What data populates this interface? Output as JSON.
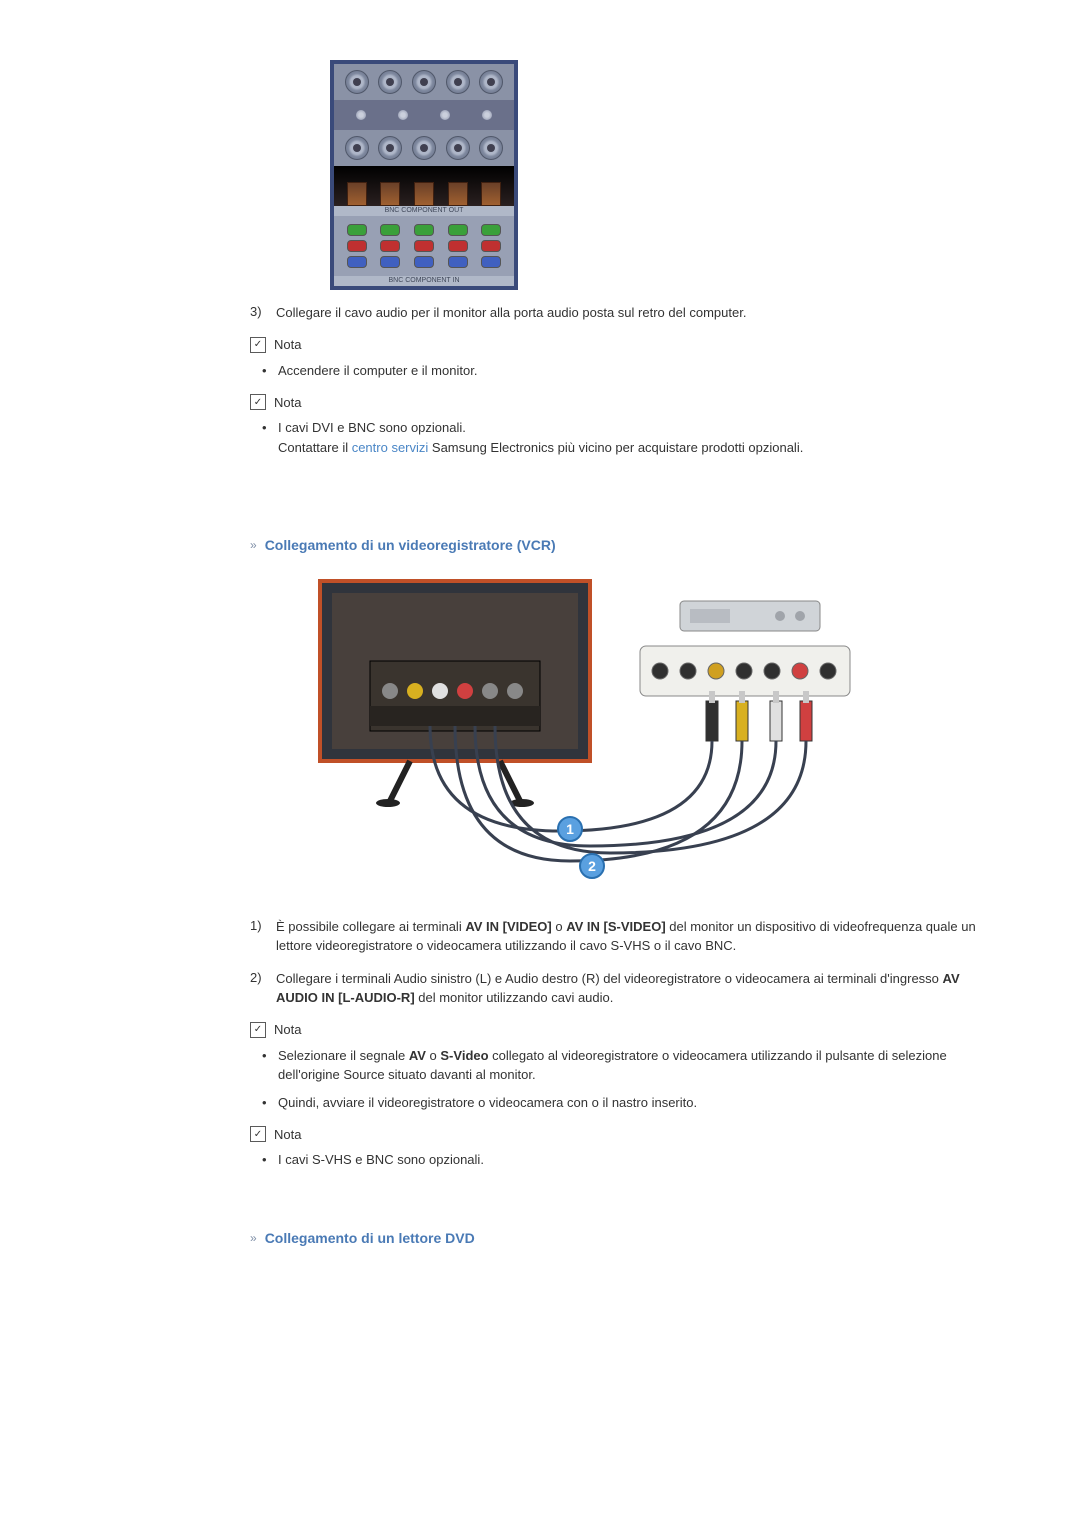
{
  "colors": {
    "link": "#4a86c6",
    "heading": "#4a7ab5",
    "text": "#333333",
    "panel_border": "#3a4a7a",
    "panel_bg": "#8a92a6"
  },
  "port_panel": {
    "label_strip": "BNC COMPONENT OUT",
    "grid_row_colors": [
      [
        "#3aa03a",
        "#3aa03a",
        "#3aa03a",
        "#3aa03a",
        "#3aa03a"
      ],
      [
        "#c03030",
        "#c03030",
        "#c03030",
        "#c03030",
        "#c03030"
      ],
      [
        "#4060c0",
        "#4060c0",
        "#4060c0",
        "#4060c0",
        "#4060c0"
      ]
    ],
    "bottom_label": "BNC COMPONENT IN"
  },
  "list1": {
    "num": "3)",
    "text": "Collegare il cavo audio per il monitor alla porta audio posta sul retro del computer."
  },
  "nota_label": "Nota",
  "bullet1": "Accendere il computer e il monitor.",
  "bullet2_a": "I cavi DVI e BNC sono opzionali.",
  "bullet2_b_pre": "Contattare il ",
  "bullet2_b_link": "centro servizi",
  "bullet2_b_post": " Samsung Electronics più vicino per acquistare prodotti opzionali.",
  "section_vcr": {
    "title": "Collegamento di un videoregistratore (VCR)"
  },
  "vcr_diagram": {
    "callouts": [
      "1",
      "2"
    ],
    "callout_bg": "#5aa0e0",
    "callout_border": "#2a70b0",
    "plug_colors": [
      "#303030",
      "#d8b020",
      "#e0e0e0",
      "#d04040"
    ],
    "monitor_bg": "#c05028",
    "vcr_bg": "#d0d4d8",
    "rca_colors": [
      "#303030",
      "#303030",
      "#d0a020",
      "#303030",
      "#303030",
      "#d04040",
      "#303030"
    ]
  },
  "vcr_list": {
    "i1_num": "1)",
    "i1_pre": "È possibile collegare ai terminali ",
    "i1_b1": "AV IN [VIDEO]",
    "i1_mid": " o ",
    "i1_b2": "AV IN [S-VIDEO]",
    "i1_post": " del monitor un dispositivo di videofrequenza quale un lettore videoregistratore o videocamera utilizzando il cavo S-VHS o il cavo BNC.",
    "i2_num": "2)",
    "i2_pre": "Collegare i terminali Audio sinistro (L) e Audio destro (R) del videoregistratore o videocamera ai terminali d'ingresso ",
    "i2_b": "AV AUDIO IN [L-AUDIO-R]",
    "i2_post": " del monitor utilizzando cavi audio."
  },
  "vcr_notes": {
    "b1_pre": "Selezionare il segnale ",
    "b1_b1": "AV",
    "b1_mid": " o ",
    "b1_b2": "S-Video",
    "b1_post": " collegato al videoregistratore o videocamera utilizzando il pulsante di selezione dell'origine Source situato davanti al monitor.",
    "b2": "Quindi, avviare il videoregistratore o videocamera con o il nastro inserito.",
    "b3": "I cavi S-VHS e BNC sono opzionali."
  },
  "section_dvd": {
    "title": "Collegamento di un lettore DVD"
  }
}
